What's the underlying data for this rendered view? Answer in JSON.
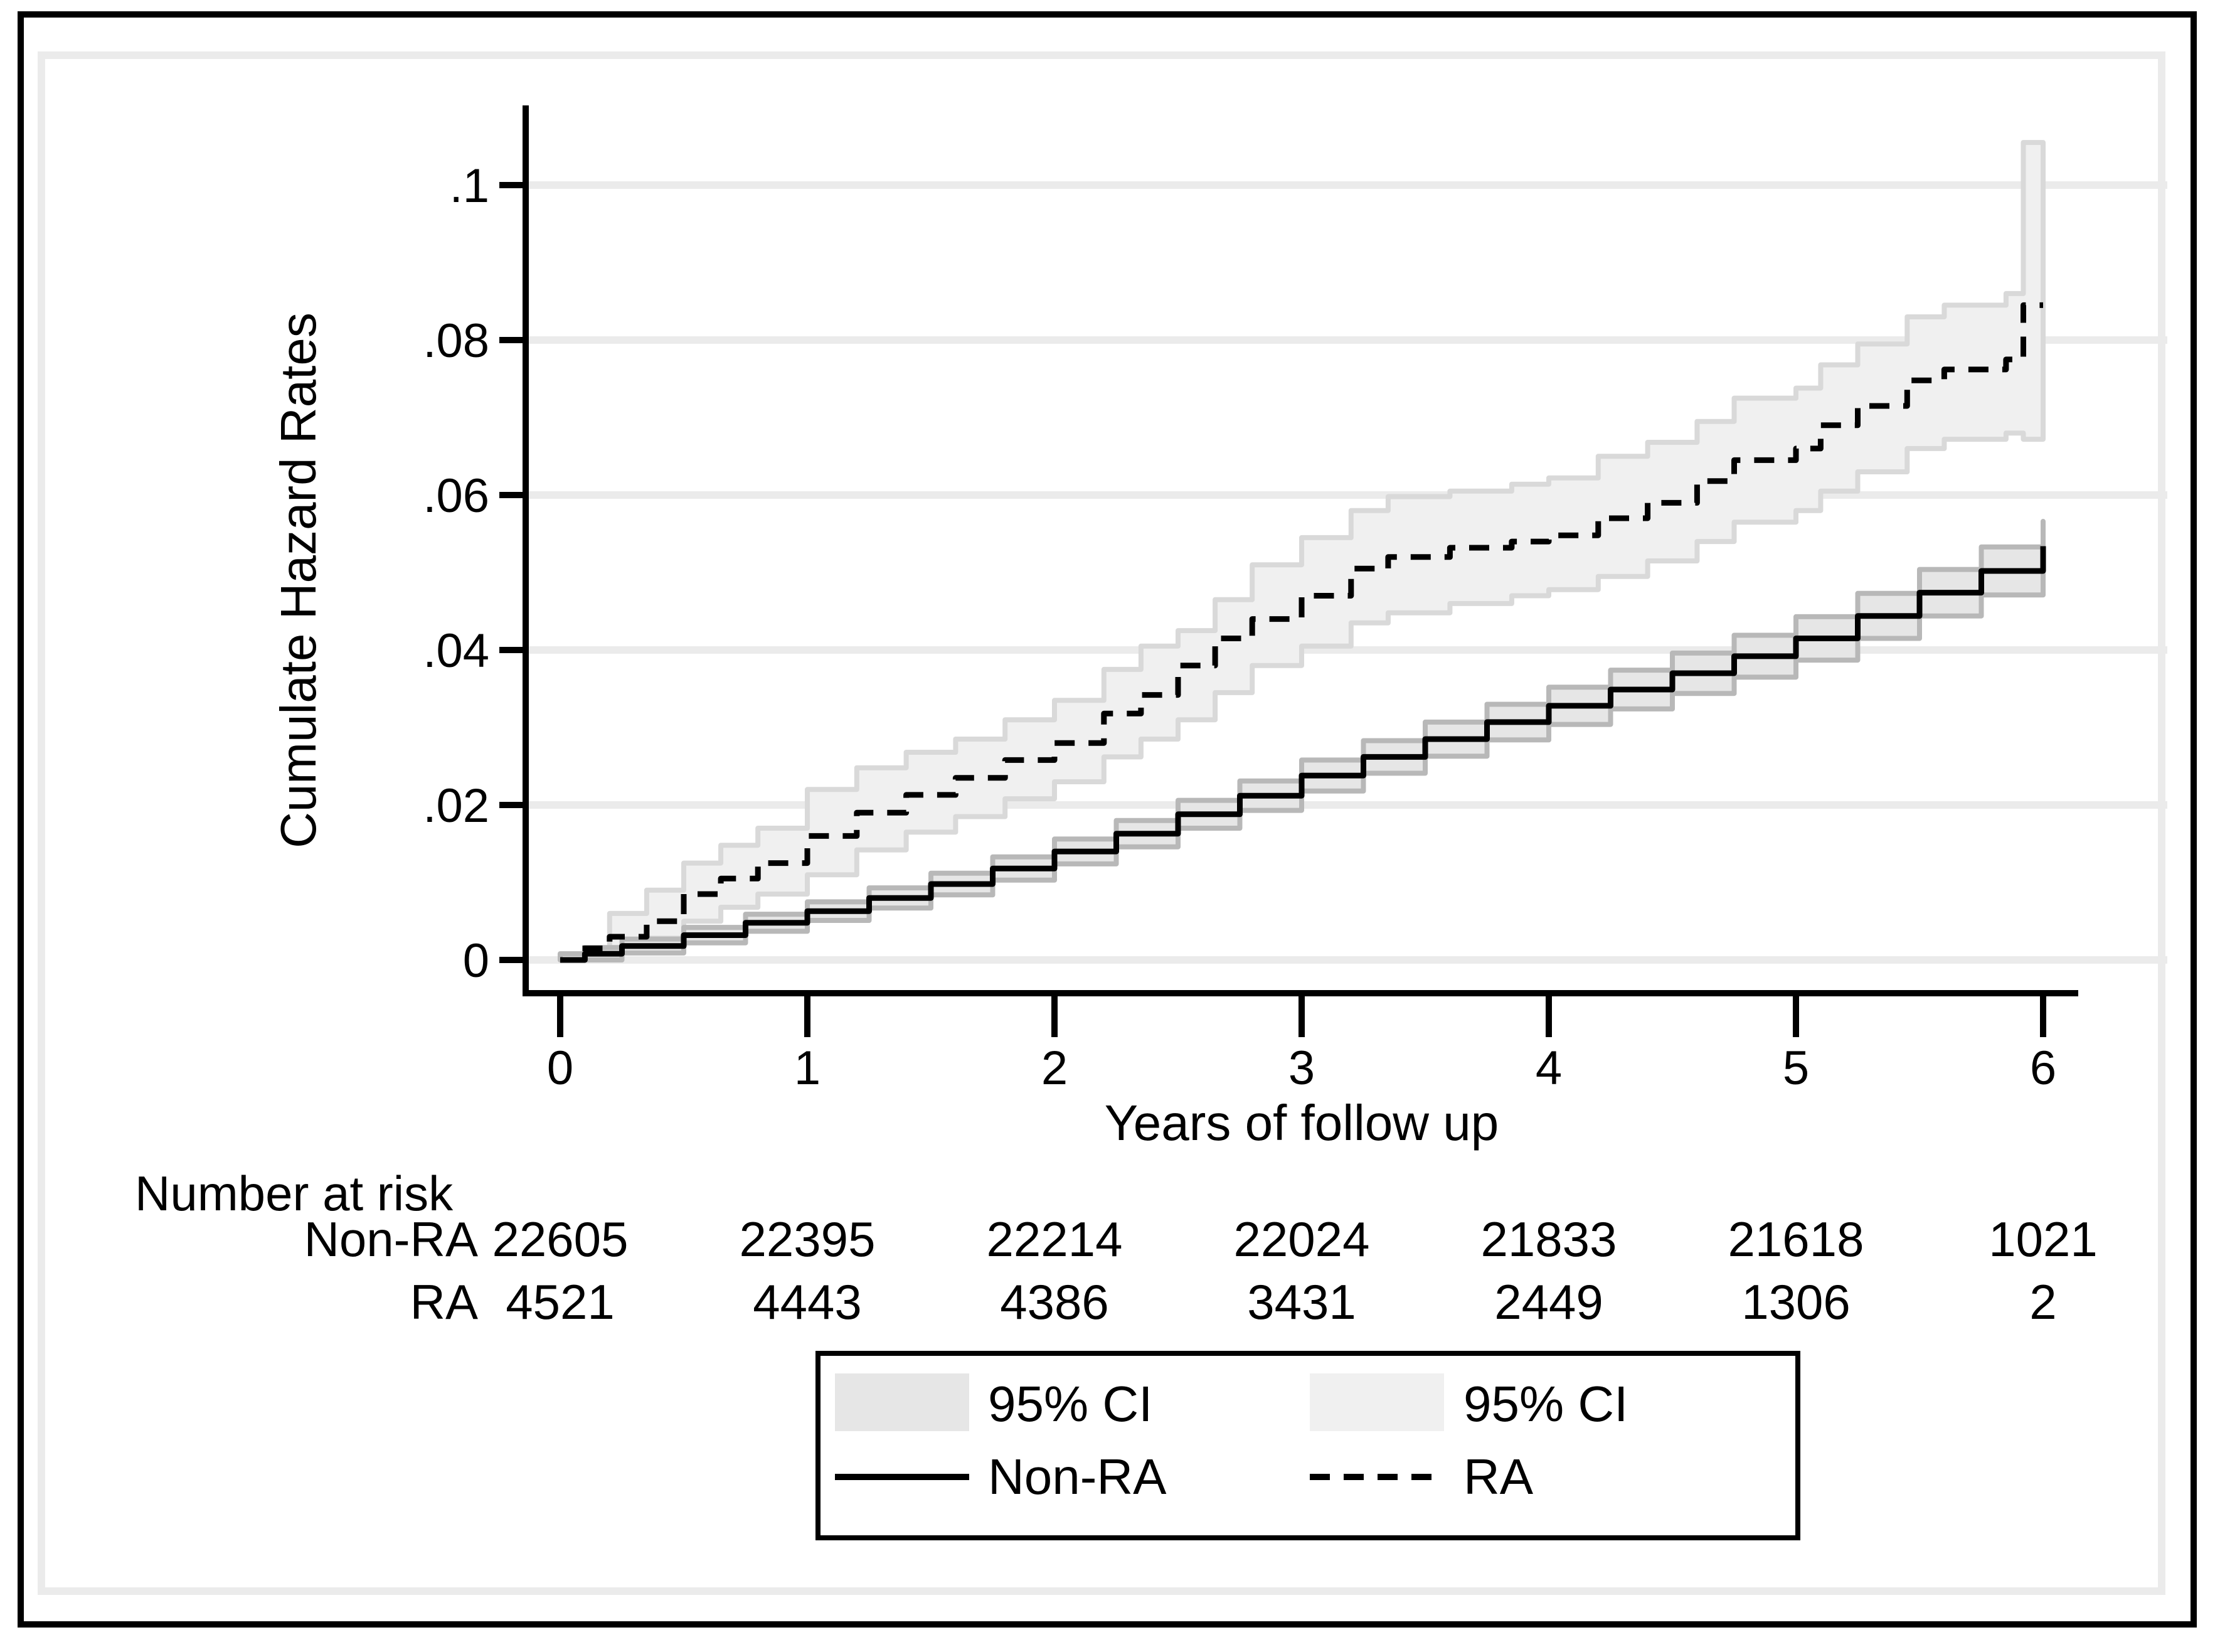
{
  "chart_data": {
    "type": "line",
    "title": "",
    "xlabel": "Years of follow up",
    "ylabel": "Cumulate Hazard Rates",
    "xlim": [
      0,
      6
    ],
    "ylim": [
      0,
      0.1
    ],
    "x_ticks": [
      "0",
      "1",
      "2",
      "3",
      "4",
      "5",
      "6"
    ],
    "x_tick_values": [
      0,
      1,
      2,
      3,
      4,
      5,
      6
    ],
    "y_ticks": [
      "0",
      ".02",
      ".04",
      ".06",
      ".08",
      ".1"
    ],
    "y_tick_values": [
      0,
      0.02,
      0.04,
      0.06,
      0.08,
      0.1
    ],
    "grid": "horizontal",
    "gridline_color": "#ebebeb",
    "axis_color": "#000000",
    "legend_position": "bottom-center",
    "series": [
      {
        "name": "Non-RA",
        "line_style": "solid",
        "line_color": "#000000",
        "ci_label": "95% CI",
        "ci_fill": "#e6e6e6",
        "ci_edge": "#b8b8b8",
        "points": [
          [
            0,
            0
          ],
          [
            0.1,
            0.0008
          ],
          [
            0.25,
            0.0018
          ],
          [
            0.5,
            0.0032
          ],
          [
            0.75,
            0.0048
          ],
          [
            1,
            0.0063
          ],
          [
            1.25,
            0.008
          ],
          [
            1.5,
            0.0098
          ],
          [
            1.75,
            0.0118
          ],
          [
            2,
            0.014
          ],
          [
            2.25,
            0.0163
          ],
          [
            2.5,
            0.0188
          ],
          [
            2.75,
            0.0212
          ],
          [
            3,
            0.0238
          ],
          [
            3.25,
            0.0262
          ],
          [
            3.5,
            0.0285
          ],
          [
            3.75,
            0.0307
          ],
          [
            4,
            0.0328
          ],
          [
            4.25,
            0.0349
          ],
          [
            4.5,
            0.037
          ],
          [
            4.75,
            0.0392
          ],
          [
            5,
            0.0415
          ],
          [
            5.25,
            0.0444
          ],
          [
            5.5,
            0.0474
          ],
          [
            5.75,
            0.0502
          ],
          [
            6,
            0.0534
          ]
        ],
        "ci_upper": [
          [
            0,
            0.0008
          ],
          [
            0.1,
            0.0016
          ],
          [
            0.25,
            0.0027
          ],
          [
            0.5,
            0.0042
          ],
          [
            0.75,
            0.0059
          ],
          [
            1,
            0.0075
          ],
          [
            1.25,
            0.0093
          ],
          [
            1.5,
            0.0112
          ],
          [
            1.75,
            0.0133
          ],
          [
            2,
            0.0156
          ],
          [
            2.25,
            0.018
          ],
          [
            2.5,
            0.0206
          ],
          [
            2.75,
            0.0231
          ],
          [
            3,
            0.0258
          ],
          [
            3.25,
            0.0283
          ],
          [
            3.5,
            0.0307
          ],
          [
            3.75,
            0.033
          ],
          [
            4,
            0.0352
          ],
          [
            4.25,
            0.0374
          ],
          [
            4.5,
            0.0396
          ],
          [
            4.75,
            0.0419
          ],
          [
            5,
            0.0443
          ],
          [
            5.25,
            0.0473
          ],
          [
            5.5,
            0.0504
          ],
          [
            5.75,
            0.0533
          ],
          [
            6,
            0.0566
          ]
        ],
        "ci_lower": [
          [
            0,
            0
          ],
          [
            0.1,
            0
          ],
          [
            0.25,
            0.0009
          ],
          [
            0.5,
            0.0022
          ],
          [
            0.75,
            0.0037
          ],
          [
            1,
            0.0051
          ],
          [
            1.25,
            0.0067
          ],
          [
            1.5,
            0.0084
          ],
          [
            1.75,
            0.0103
          ],
          [
            2,
            0.0124
          ],
          [
            2.25,
            0.0146
          ],
          [
            2.5,
            0.017
          ],
          [
            2.75,
            0.0193
          ],
          [
            3,
            0.0218
          ],
          [
            3.25,
            0.0241
          ],
          [
            3.5,
            0.0263
          ],
          [
            3.75,
            0.0284
          ],
          [
            4,
            0.0304
          ],
          [
            4.25,
            0.0324
          ],
          [
            4.5,
            0.0344
          ],
          [
            4.75,
            0.0365
          ],
          [
            5,
            0.0387
          ],
          [
            5.25,
            0.0415
          ],
          [
            5.5,
            0.0444
          ],
          [
            5.75,
            0.0471
          ],
          [
            6,
            0.0502
          ]
        ]
      },
      {
        "name": "RA",
        "line_style": "dashed",
        "line_color": "#000000",
        "ci_label": "95% CI",
        "ci_fill": "#f0f0f0",
        "ci_edge": "#d9d9d9",
        "points": [
          [
            0,
            0
          ],
          [
            0.08,
            0.0015
          ],
          [
            0.2,
            0.003
          ],
          [
            0.35,
            0.005
          ],
          [
            0.5,
            0.0085
          ],
          [
            0.65,
            0.0105
          ],
          [
            0.8,
            0.0125
          ],
          [
            1,
            0.016
          ],
          [
            1.2,
            0.019
          ],
          [
            1.4,
            0.0213
          ],
          [
            1.6,
            0.0235
          ],
          [
            1.8,
            0.0258
          ],
          [
            2,
            0.028
          ],
          [
            2.2,
            0.0318
          ],
          [
            2.35,
            0.0342
          ],
          [
            2.5,
            0.038
          ],
          [
            2.65,
            0.0415
          ],
          [
            2.8,
            0.044
          ],
          [
            3,
            0.047
          ],
          [
            3.2,
            0.0505
          ],
          [
            3.35,
            0.052
          ],
          [
            3.6,
            0.0532
          ],
          [
            3.85,
            0.054
          ],
          [
            4,
            0.0548
          ],
          [
            4.2,
            0.057
          ],
          [
            4.4,
            0.059
          ],
          [
            4.6,
            0.0618
          ],
          [
            4.75,
            0.0645
          ],
          [
            5,
            0.066
          ],
          [
            5.1,
            0.069
          ],
          [
            5.25,
            0.0715
          ],
          [
            5.45,
            0.0748
          ],
          [
            5.6,
            0.0762
          ],
          [
            5.85,
            0.0775
          ],
          [
            5.92,
            0.0845
          ],
          [
            6,
            0.0845
          ]
        ],
        "ci_upper": [
          [
            0,
            0.0008
          ],
          [
            0.2,
            0.006
          ],
          [
            0.35,
            0.009
          ],
          [
            0.5,
            0.0125
          ],
          [
            0.65,
            0.0148
          ],
          [
            0.8,
            0.017
          ],
          [
            1,
            0.022
          ],
          [
            1.2,
            0.0248
          ],
          [
            1.4,
            0.0268
          ],
          [
            1.6,
            0.0285
          ],
          [
            1.8,
            0.031
          ],
          [
            2,
            0.0335
          ],
          [
            2.2,
            0.0375
          ],
          [
            2.35,
            0.0405
          ],
          [
            2.5,
            0.0425
          ],
          [
            2.65,
            0.0465
          ],
          [
            2.8,
            0.051
          ],
          [
            3,
            0.0545
          ],
          [
            3.2,
            0.058
          ],
          [
            3.35,
            0.0598
          ],
          [
            3.6,
            0.0605
          ],
          [
            3.85,
            0.0614
          ],
          [
            4,
            0.0622
          ],
          [
            4.2,
            0.065
          ],
          [
            4.4,
            0.0668
          ],
          [
            4.6,
            0.0695
          ],
          [
            4.75,
            0.0725
          ],
          [
            5,
            0.0738
          ],
          [
            5.1,
            0.0768
          ],
          [
            5.25,
            0.0795
          ],
          [
            5.45,
            0.083
          ],
          [
            5.6,
            0.0845
          ],
          [
            5.85,
            0.086
          ],
          [
            5.92,
            0.1055
          ],
          [
            6,
            0.1055
          ]
        ],
        "ci_lower": [
          [
            0,
            0
          ],
          [
            0.2,
            0.0015
          ],
          [
            0.35,
            0.0028
          ],
          [
            0.5,
            0.005
          ],
          [
            0.65,
            0.0068
          ],
          [
            0.8,
            0.0085
          ],
          [
            1,
            0.011
          ],
          [
            1.2,
            0.0142
          ],
          [
            1.4,
            0.0165
          ],
          [
            1.6,
            0.0185
          ],
          [
            1.8,
            0.0208
          ],
          [
            2,
            0.023
          ],
          [
            2.2,
            0.0262
          ],
          [
            2.35,
            0.0285
          ],
          [
            2.5,
            0.031
          ],
          [
            2.65,
            0.0345
          ],
          [
            2.8,
            0.038
          ],
          [
            3,
            0.0405
          ],
          [
            3.2,
            0.0435
          ],
          [
            3.35,
            0.0448
          ],
          [
            3.6,
            0.046
          ],
          [
            3.85,
            0.047
          ],
          [
            4,
            0.0478
          ],
          [
            4.2,
            0.0495
          ],
          [
            4.4,
            0.0515
          ],
          [
            4.6,
            0.054
          ],
          [
            4.75,
            0.0565
          ],
          [
            5,
            0.058
          ],
          [
            5.1,
            0.0605
          ],
          [
            5.25,
            0.063
          ],
          [
            5.45,
            0.066
          ],
          [
            5.6,
            0.0672
          ],
          [
            5.85,
            0.068
          ],
          [
            5.92,
            0.0672
          ],
          [
            6,
            0.0672
          ]
        ]
      }
    ],
    "risk_table": {
      "title": "Number at risk",
      "years": [
        0,
        1,
        2,
        3,
        4,
        5,
        6
      ],
      "rows": [
        {
          "label": "Non-RA",
          "values": [
            "22605",
            "22395",
            "22214",
            "22024",
            "21833",
            "21618",
            "1021"
          ]
        },
        {
          "label": "RA",
          "values": [
            "4521",
            "4443",
            "4386",
            "3431",
            "2449",
            "1306",
            "2"
          ]
        }
      ]
    },
    "legend": {
      "items": [
        {
          "key": "ci-swatch-nonra",
          "label": "95% CI"
        },
        {
          "key": "ci-swatch-ra",
          "label": "95% CI"
        },
        {
          "key": "solid-line",
          "label": "Non-RA"
        },
        {
          "key": "dashed-line",
          "label": "RA"
        }
      ]
    }
  }
}
